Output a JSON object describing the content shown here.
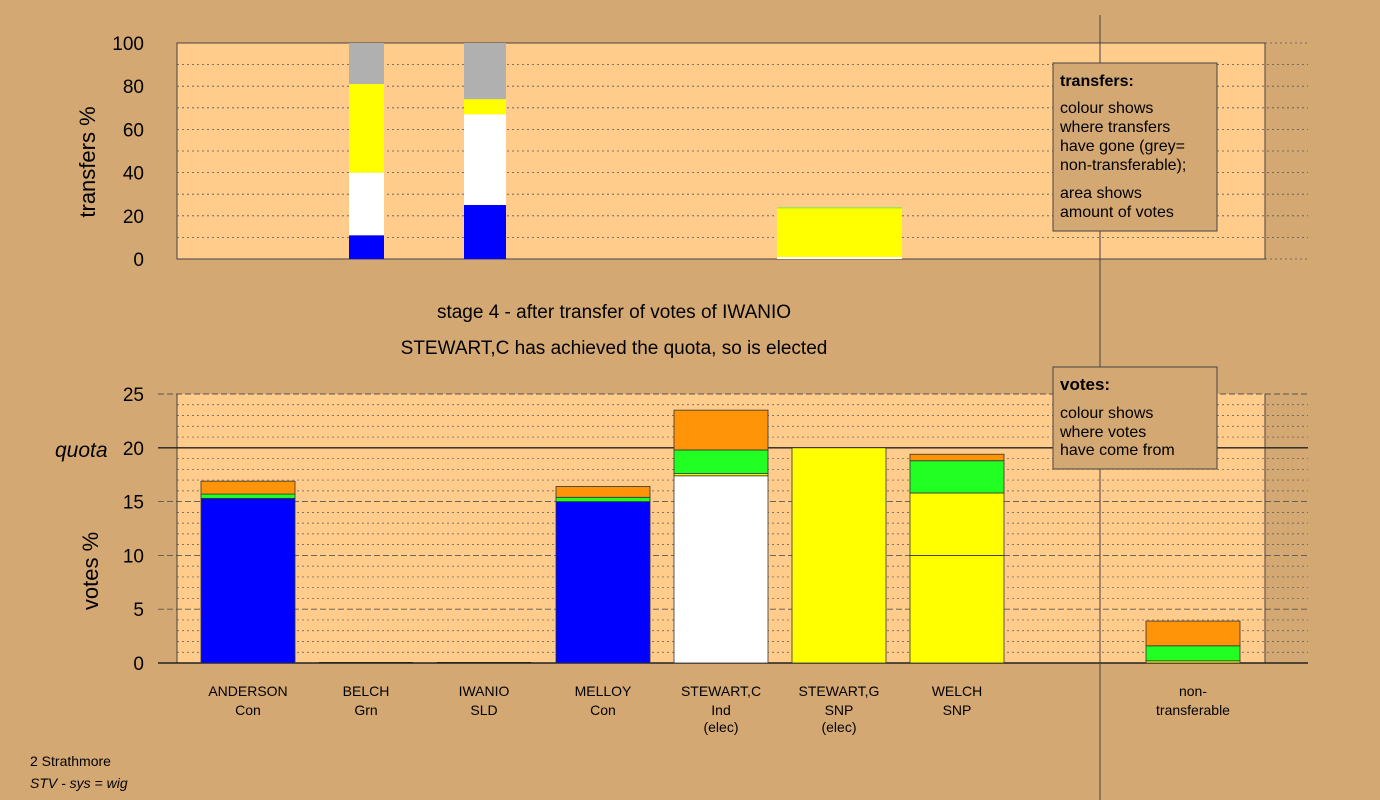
{
  "chart_data": [
    {
      "type": "bar",
      "stacked": true,
      "ylabel": "transfers %",
      "ylim": [
        0,
        100
      ],
      "yticks": [
        "0",
        "20",
        "40",
        "60",
        "80",
        "100"
      ],
      "grid": true,
      "stacks": [
        {
          "segments": [
            {
              "color": "blue",
              "value": 11
            },
            {
              "color": "white",
              "value": 29
            },
            {
              "color": "yellow",
              "value": 41
            },
            {
              "color": "grey",
              "value": 19
            }
          ]
        },
        {
          "segments": [
            {
              "color": "blue",
              "value": 25
            },
            {
              "color": "white",
              "value": 42
            },
            {
              "color": "yellow",
              "value": 7
            },
            {
              "color": "grey",
              "value": 26
            }
          ]
        },
        {
          "segments": [
            {
              "color": "white",
              "value": 1
            },
            {
              "color": "yellow",
              "value": 22.5
            },
            {
              "color": "green",
              "value": 0.3
            }
          ]
        }
      ],
      "legend": {
        "title": "transfers:",
        "lines": [
          "colour shows",
          "where transfers",
          "have gone (grey=",
          "non-transferable);",
          "area shows",
          "amount of votes"
        ],
        "placement": "top-right"
      }
    },
    {
      "type": "bar",
      "stacked": true,
      "ylabel": "votes %",
      "ylim": [
        0,
        25
      ],
      "yticks": [
        "0",
        "5",
        "10",
        "15",
        "20",
        "25"
      ],
      "quota": {
        "label": "quota",
        "value": 20
      },
      "grid": true,
      "categories": [
        {
          "name": "ANDERSON",
          "party": "Con",
          "note": ""
        },
        {
          "name": "BELCH",
          "party": "Grn",
          "note": ""
        },
        {
          "name": "IWANIO",
          "party": "SLD",
          "note": ""
        },
        {
          "name": "MELLOY",
          "party": "Con",
          "note": ""
        },
        {
          "name": "STEWART,C",
          "party": "Ind",
          "note": "(elec)"
        },
        {
          "name": "STEWART,G",
          "party": "SNP",
          "note": "(elec)"
        },
        {
          "name": "WELCH",
          "party": "SNP",
          "note": ""
        },
        {
          "name": "non-",
          "party": "transferable",
          "note": ""
        }
      ],
      "stacks": [
        {
          "segments": [
            {
              "color": "blue",
              "value": 15.3
            },
            {
              "color": "green",
              "value": 0.4
            },
            {
              "color": "orange",
              "value": 1.2
            }
          ]
        },
        {
          "segments": []
        },
        {
          "segments": []
        },
        {
          "segments": [
            {
              "color": "blue",
              "value": 15.0
            },
            {
              "color": "green",
              "value": 0.4
            },
            {
              "color": "orange",
              "value": 1.0
            }
          ]
        },
        {
          "segments": [
            {
              "color": "white",
              "value": 17.4
            },
            {
              "color": "yellow",
              "value": 0.2
            },
            {
              "color": "green",
              "value": 2.2
            },
            {
              "color": "orange",
              "value": 3.7
            }
          ]
        },
        {
          "segments": [
            {
              "color": "yellow",
              "value": 20.0
            }
          ]
        },
        {
          "segments": [
            {
              "color": "yellow",
              "value": 10.0
            },
            {
              "color": "yellow",
              "value": 5.8
            },
            {
              "color": "green",
              "value": 3.0
            },
            {
              "color": "orange",
              "value": 0.6
            }
          ]
        },
        {
          "segments": [
            {
              "color": "yellow",
              "value": 0.2
            },
            {
              "color": "green",
              "value": 1.4
            },
            {
              "color": "orange",
              "value": 2.3
            }
          ]
        }
      ],
      "legend": {
        "title": "votes:",
        "lines": [
          "colour shows",
          "where votes",
          "have come from"
        ],
        "placement": "top-right"
      }
    }
  ],
  "stage_text": "stage 4 - after transfer of votes of IWANIO",
  "elected_text": "STEWART,C has achieved the quota, so is elected",
  "footer": {
    "line1": "2 Strathmore",
    "line2": "STV - sys = wig"
  },
  "colors": {
    "background": "#d4a873",
    "plot_area": "#ffcc8c",
    "blue": "#0000ff",
    "white": "#ffffff",
    "yellow": "#ffff00",
    "grey": "#b0b0b0",
    "green": "#22ff22",
    "orange": "#ff9408",
    "legend_box": "#d4a873"
  }
}
